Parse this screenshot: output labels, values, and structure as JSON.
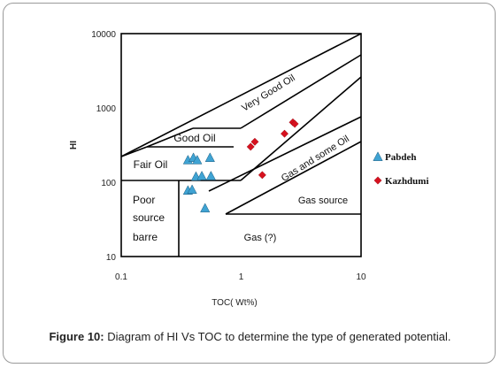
{
  "caption": {
    "label": "Figure 10:",
    "text": " Diagram of HI Vs TOC to determine the type of generated potential."
  },
  "colors": {
    "pabdeh": "#3fa3d3",
    "kazhdumi": "#d6111f",
    "line": "#000000"
  },
  "chart_data": {
    "type": "scatter",
    "title": "",
    "xlabel": "TOC( Wt%)",
    "ylabel": "HI",
    "xscale": "log",
    "yscale": "log",
    "xlim": [
      0.1,
      10
    ],
    "ylim": [
      10,
      10000
    ],
    "xticks": [
      "0.1",
      "1",
      "10"
    ],
    "yticks": [
      "10",
      "100",
      "1000",
      "10000"
    ],
    "grid": false,
    "legend_position": "right",
    "series": [
      {
        "name": "Pabdeh",
        "marker": "triangle",
        "color": "#3fa3d3",
        "points": [
          [
            0.36,
            200
          ],
          [
            0.4,
            215
          ],
          [
            0.43,
            200
          ],
          [
            0.55,
            215
          ],
          [
            0.42,
            120
          ],
          [
            0.47,
            122
          ],
          [
            0.56,
            122
          ],
          [
            0.36,
            78
          ],
          [
            0.39,
            80
          ],
          [
            0.5,
            45
          ]
        ]
      },
      {
        "name": "Kazhdumi",
        "marker": "diamond",
        "color": "#d6111f",
        "points": [
          [
            1.2,
            300
          ],
          [
            1.3,
            350
          ],
          [
            2.3,
            450
          ],
          [
            2.7,
            640
          ],
          [
            2.8,
            610
          ],
          [
            1.5,
            125
          ]
        ]
      }
    ],
    "zones": [
      {
        "label": "Very Good Oil",
        "size": 11,
        "rot": -32
      },
      {
        "label": "Good Oil",
        "size": 12,
        "rot": 0
      },
      {
        "label": "Fair Oil",
        "size": 12,
        "rot": 0
      },
      {
        "label": "Gas and some Oil",
        "size": 11,
        "rot": -32
      },
      {
        "label": "Gas source",
        "size": 11,
        "rot": 0
      },
      {
        "label": "Poor",
        "size": 12,
        "rot": 0
      },
      {
        "label": "source",
        "size": 12,
        "rot": 0
      },
      {
        "label": "barre",
        "size": 12,
        "rot": 0
      },
      {
        "label": "Gas (?)",
        "size": 11,
        "rot": 0
      }
    ]
  }
}
